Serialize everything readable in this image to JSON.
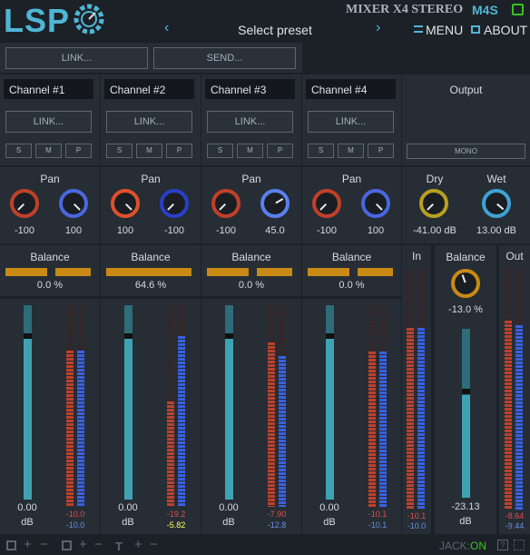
{
  "header": {
    "logo": "LSP",
    "title": "MIXER X4 STEREO",
    "code": "M4S",
    "preset": "Select preset",
    "menu": "MENU",
    "about": "ABOUT",
    "prev": "‹",
    "next": "›"
  },
  "top": {
    "link": "LINK...",
    "send": "SEND...",
    "output": "Output",
    "mono": "MONO"
  },
  "channels": [
    {
      "name": "Channel #1",
      "link": "LINK...",
      "s": "S",
      "m": "M",
      "p": "P",
      "pan_label": "Pan",
      "pan_l": "-100",
      "pan_r": "100",
      "bal_label": "Balance",
      "bal": "0.0 %",
      "gain": "0.00",
      "unit": "dB",
      "peak_l": "-10.0",
      "peak_r": "-10.0"
    },
    {
      "name": "Channel #2",
      "link": "LINK...",
      "s": "S",
      "m": "M",
      "p": "P",
      "pan_label": "Pan",
      "pan_l": "100",
      "pan_r": "-100",
      "bal_label": "Balance",
      "bal": "64.6 %",
      "gain": "0.00",
      "unit": "dB",
      "peak_l": "-19.2",
      "peak_r": "-5.82"
    },
    {
      "name": "Channel #3",
      "link": "LINK...",
      "s": "S",
      "m": "M",
      "p": "P",
      "pan_label": "Pan",
      "pan_l": "-100",
      "pan_r": "45.0",
      "bal_label": "Balance",
      "bal": "0.0 %",
      "gain": "0.00",
      "unit": "dB",
      "peak_l": "-7.90",
      "peak_r": "-12.8"
    },
    {
      "name": "Channel #4",
      "link": "LINK...",
      "s": "S",
      "m": "M",
      "p": "P",
      "pan_label": "Pan",
      "pan_l": "-100",
      "pan_r": "100",
      "bal_label": "Balance",
      "bal": "0.0 %",
      "gain": "0.00",
      "unit": "dB",
      "peak_l": "-10.1",
      "peak_r": "-10.1"
    }
  ],
  "master": {
    "dry_label": "Dry",
    "dry": "-41.00 dB",
    "wet_label": "Wet",
    "wet": "13.00 dB",
    "in_label": "In",
    "in_l": "-10.1",
    "in_r": "-10.0",
    "bal_label": "Balance",
    "bal": "-13.0 %",
    "gain": "-23.13",
    "unit": "dB",
    "out_label": "Out",
    "out_l": "-8.64",
    "out_r": "-9.44"
  },
  "footer": {
    "plus": "+",
    "minus": "−",
    "jack_label": "JACK:",
    "jack_state": "ON",
    "help": "?"
  },
  "colors": {
    "accent": "#3fa2b3",
    "gold": "#c88a14",
    "green": "#3ac21e"
  }
}
